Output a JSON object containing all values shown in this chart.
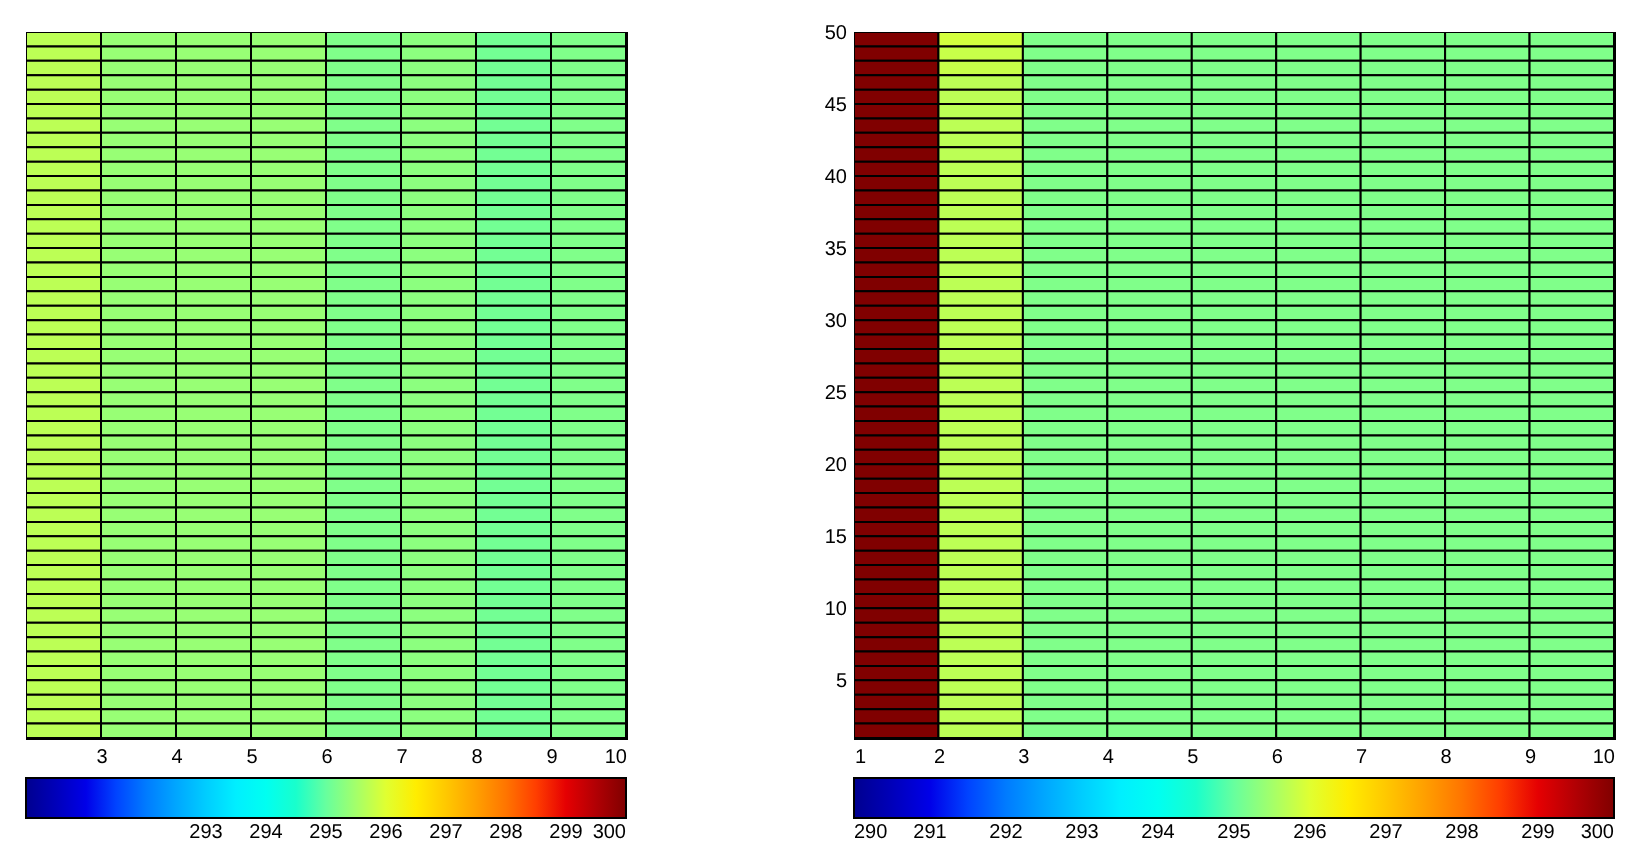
{
  "chart_data": [
    {
      "type": "heatmap",
      "xlim": [
        2,
        10
      ],
      "xticks": [
        3,
        4,
        5,
        6,
        7,
        8,
        9,
        10
      ],
      "ylim": [
        1,
        50
      ],
      "tick_labels": "x",
      "clim": [
        290,
        300
      ],
      "cticks": [
        293,
        294,
        295,
        296,
        297,
        298,
        299,
        300
      ],
      "cells": [
        [
          295.7,
          295.4,
          295.4,
          295.4,
          295.2,
          295.3,
          295.1,
          295.2
        ],
        [
          295.7,
          295.4,
          295.4,
          295.4,
          295.2,
          295.3,
          295.1,
          295.2
        ],
        [
          295.7,
          295.4,
          295.4,
          295.4,
          295.2,
          295.3,
          295.1,
          295.2
        ],
        [
          295.7,
          295.4,
          295.4,
          295.4,
          295.2,
          295.3,
          295.1,
          295.2
        ],
        [
          295.7,
          295.4,
          295.4,
          295.4,
          295.2,
          295.3,
          295.1,
          295.2
        ],
        [
          295.7,
          295.4,
          295.4,
          295.4,
          295.2,
          295.3,
          295.1,
          295.2
        ],
        [
          295.7,
          295.4,
          295.4,
          295.4,
          295.2,
          295.3,
          295.1,
          295.2
        ],
        [
          295.7,
          295.4,
          295.4,
          295.4,
          295.2,
          295.3,
          295.1,
          295.2
        ],
        [
          295.7,
          295.4,
          295.4,
          295.4,
          295.2,
          295.3,
          295.1,
          295.2
        ],
        [
          295.7,
          295.4,
          295.4,
          295.4,
          295.2,
          295.3,
          295.1,
          295.2
        ],
        [
          295.7,
          295.4,
          295.4,
          295.4,
          295.2,
          295.3,
          295.1,
          295.2
        ],
        [
          295.7,
          295.4,
          295.4,
          295.4,
          295.2,
          295.3,
          295.1,
          295.2
        ],
        [
          295.7,
          295.4,
          295.4,
          295.4,
          295.2,
          295.3,
          295.1,
          295.2
        ],
        [
          295.7,
          295.4,
          295.4,
          295.4,
          295.2,
          295.3,
          295.1,
          295.2
        ],
        [
          295.7,
          295.4,
          295.4,
          295.4,
          295.2,
          295.3,
          295.1,
          295.2
        ],
        [
          295.7,
          295.4,
          295.4,
          295.4,
          295.2,
          295.3,
          295.1,
          295.2
        ],
        [
          295.7,
          295.4,
          295.4,
          295.4,
          295.2,
          295.3,
          295.1,
          295.2
        ],
        [
          295.7,
          295.4,
          295.4,
          295.4,
          295.2,
          295.3,
          295.1,
          295.2
        ],
        [
          295.7,
          295.4,
          295.4,
          295.4,
          295.2,
          295.3,
          295.1,
          295.2
        ],
        [
          295.7,
          295.4,
          295.4,
          295.4,
          295.2,
          295.3,
          295.1,
          295.2
        ],
        [
          295.7,
          295.4,
          295.4,
          295.4,
          295.2,
          295.3,
          295.1,
          295.2
        ],
        [
          295.7,
          295.4,
          295.4,
          295.4,
          295.2,
          295.3,
          295.1,
          295.2
        ],
        [
          295.7,
          295.4,
          295.4,
          295.4,
          295.2,
          295.3,
          295.1,
          295.2
        ],
        [
          295.7,
          295.4,
          295.4,
          295.4,
          295.2,
          295.3,
          295.1,
          295.2
        ],
        [
          295.7,
          295.4,
          295.4,
          295.4,
          295.2,
          295.3,
          295.1,
          295.2
        ],
        [
          295.7,
          295.4,
          295.4,
          295.4,
          295.2,
          295.3,
          295.1,
          295.2
        ],
        [
          295.7,
          295.4,
          295.4,
          295.4,
          295.2,
          295.3,
          295.1,
          295.2
        ],
        [
          295.7,
          295.4,
          295.4,
          295.4,
          295.2,
          295.3,
          295.1,
          295.2
        ],
        [
          295.7,
          295.4,
          295.4,
          295.4,
          295.2,
          295.3,
          295.1,
          295.2
        ],
        [
          295.7,
          295.4,
          295.4,
          295.4,
          295.2,
          295.3,
          295.1,
          295.2
        ],
        [
          295.7,
          295.4,
          295.4,
          295.4,
          295.2,
          295.3,
          295.1,
          295.2
        ],
        [
          295.7,
          295.4,
          295.4,
          295.4,
          295.2,
          295.3,
          295.1,
          295.2
        ],
        [
          295.7,
          295.4,
          295.4,
          295.4,
          295.2,
          295.3,
          295.1,
          295.2
        ],
        [
          295.7,
          295.4,
          295.4,
          295.4,
          295.2,
          295.3,
          295.1,
          295.2
        ],
        [
          295.7,
          295.4,
          295.4,
          295.4,
          295.2,
          295.3,
          295.1,
          295.2
        ],
        [
          295.7,
          295.4,
          295.4,
          295.4,
          295.2,
          295.3,
          295.1,
          295.2
        ],
        [
          295.7,
          295.4,
          295.4,
          295.4,
          295.2,
          295.3,
          295.1,
          295.2
        ],
        [
          295.7,
          295.4,
          295.4,
          295.4,
          295.2,
          295.3,
          295.1,
          295.2
        ],
        [
          295.7,
          295.4,
          295.4,
          295.4,
          295.2,
          295.3,
          295.1,
          295.2
        ],
        [
          295.7,
          295.4,
          295.4,
          295.4,
          295.2,
          295.3,
          295.1,
          295.2
        ],
        [
          295.7,
          295.4,
          295.4,
          295.4,
          295.2,
          295.3,
          295.1,
          295.2
        ],
        [
          295.7,
          295.4,
          295.4,
          295.4,
          295.2,
          295.3,
          295.1,
          295.2
        ],
        [
          295.7,
          295.4,
          295.4,
          295.4,
          295.2,
          295.3,
          295.1,
          295.2
        ],
        [
          295.7,
          295.4,
          295.4,
          295.4,
          295.2,
          295.3,
          295.1,
          295.2
        ],
        [
          295.7,
          295.4,
          295.4,
          295.4,
          295.2,
          295.3,
          295.1,
          295.2
        ],
        [
          295.7,
          295.4,
          295.4,
          295.4,
          295.2,
          295.3,
          295.1,
          295.2
        ],
        [
          295.7,
          295.4,
          295.4,
          295.4,
          295.2,
          295.3,
          295.1,
          295.2
        ],
        [
          295.7,
          295.4,
          295.4,
          295.4,
          295.2,
          295.3,
          295.1,
          295.2
        ],
        [
          295.7,
          295.4,
          295.4,
          295.4,
          295.2,
          295.3,
          295.1,
          295.2
        ]
      ]
    },
    {
      "type": "heatmap",
      "xlim": [
        1,
        10
      ],
      "xticks": [
        1,
        2,
        3,
        4,
        5,
        6,
        7,
        8,
        9,
        10
      ],
      "ylim": [
        1,
        50
      ],
      "yticks": [
        5,
        10,
        15,
        20,
        25,
        30,
        35,
        40,
        45,
        50
      ],
      "clim": [
        290,
        300
      ],
      "cticks": [
        290,
        291,
        292,
        293,
        294,
        295,
        296,
        297,
        298,
        299,
        300
      ],
      "cells": [
        [
          300,
          295.9,
          295.2,
          295.2,
          295.2,
          295.2,
          295.2,
          295.2,
          295.2
        ],
        [
          300,
          295.8,
          295.2,
          295.2,
          295.2,
          295.2,
          295.2,
          295.2,
          295.2
        ],
        [
          300,
          295.8,
          295.2,
          295.2,
          295.2,
          295.2,
          295.2,
          295.2,
          295.2
        ],
        [
          300,
          295.7,
          295.2,
          295.2,
          295.2,
          295.2,
          295.2,
          295.2,
          295.2
        ],
        [
          300,
          295.7,
          295.2,
          295.2,
          295.2,
          295.2,
          295.2,
          295.2,
          295.2
        ],
        [
          300,
          295.7,
          295.2,
          295.2,
          295.2,
          295.2,
          295.2,
          295.2,
          295.2
        ],
        [
          300,
          295.7,
          295.2,
          295.2,
          295.2,
          295.2,
          295.2,
          295.2,
          295.2
        ],
        [
          300,
          295.7,
          295.2,
          295.2,
          295.2,
          295.2,
          295.2,
          295.2,
          295.2
        ],
        [
          300,
          295.7,
          295.2,
          295.2,
          295.2,
          295.2,
          295.2,
          295.2,
          295.2
        ],
        [
          300,
          295.7,
          295.2,
          295.2,
          295.2,
          295.2,
          295.2,
          295.2,
          295.2
        ],
        [
          300,
          295.7,
          295.2,
          295.2,
          295.2,
          295.2,
          295.2,
          295.2,
          295.2
        ],
        [
          300,
          295.7,
          295.2,
          295.2,
          295.2,
          295.2,
          295.2,
          295.2,
          295.2
        ],
        [
          300,
          295.7,
          295.2,
          295.2,
          295.2,
          295.2,
          295.2,
          295.2,
          295.2
        ],
        [
          300,
          295.7,
          295.2,
          295.2,
          295.2,
          295.2,
          295.2,
          295.2,
          295.2
        ],
        [
          300,
          295.7,
          295.2,
          295.2,
          295.2,
          295.2,
          295.2,
          295.2,
          295.2
        ],
        [
          300,
          295.7,
          295.2,
          295.2,
          295.2,
          295.2,
          295.2,
          295.2,
          295.2
        ],
        [
          300,
          295.7,
          295.2,
          295.2,
          295.2,
          295.2,
          295.2,
          295.2,
          295.2
        ],
        [
          300,
          295.7,
          295.2,
          295.2,
          295.2,
          295.2,
          295.2,
          295.2,
          295.2
        ],
        [
          300,
          295.7,
          295.2,
          295.2,
          295.2,
          295.2,
          295.2,
          295.2,
          295.2
        ],
        [
          300,
          295.7,
          295.2,
          295.2,
          295.2,
          295.2,
          295.2,
          295.2,
          295.2
        ],
        [
          300,
          295.7,
          295.2,
          295.2,
          295.2,
          295.2,
          295.2,
          295.2,
          295.2
        ],
        [
          300,
          295.7,
          295.2,
          295.2,
          295.2,
          295.2,
          295.2,
          295.2,
          295.2
        ],
        [
          300,
          295.7,
          295.2,
          295.2,
          295.2,
          295.2,
          295.2,
          295.2,
          295.2
        ],
        [
          300,
          295.7,
          295.2,
          295.2,
          295.2,
          295.2,
          295.2,
          295.2,
          295.2
        ],
        [
          300,
          295.7,
          295.2,
          295.2,
          295.2,
          295.2,
          295.2,
          295.2,
          295.2
        ],
        [
          300,
          295.7,
          295.2,
          295.2,
          295.2,
          295.2,
          295.2,
          295.2,
          295.2
        ],
        [
          300,
          295.7,
          295.2,
          295.2,
          295.2,
          295.2,
          295.2,
          295.2,
          295.2
        ],
        [
          300,
          295.7,
          295.2,
          295.2,
          295.2,
          295.2,
          295.2,
          295.2,
          295.2
        ],
        [
          300,
          295.7,
          295.2,
          295.2,
          295.2,
          295.2,
          295.2,
          295.2,
          295.2
        ],
        [
          300,
          295.7,
          295.2,
          295.2,
          295.2,
          295.2,
          295.2,
          295.2,
          295.2
        ],
        [
          300,
          295.7,
          295.2,
          295.2,
          295.2,
          295.2,
          295.2,
          295.2,
          295.2
        ],
        [
          300,
          295.7,
          295.2,
          295.2,
          295.2,
          295.2,
          295.2,
          295.2,
          295.2
        ],
        [
          300,
          295.7,
          295.2,
          295.2,
          295.2,
          295.2,
          295.2,
          295.2,
          295.2
        ],
        [
          300,
          295.7,
          295.2,
          295.2,
          295.2,
          295.2,
          295.2,
          295.2,
          295.2
        ],
        [
          300,
          295.7,
          295.2,
          295.2,
          295.2,
          295.2,
          295.2,
          295.2,
          295.2
        ],
        [
          300,
          295.7,
          295.2,
          295.2,
          295.2,
          295.2,
          295.2,
          295.2,
          295.2
        ],
        [
          300,
          295.7,
          295.2,
          295.2,
          295.2,
          295.2,
          295.2,
          295.2,
          295.2
        ],
        [
          300,
          295.7,
          295.2,
          295.2,
          295.2,
          295.2,
          295.2,
          295.2,
          295.2
        ],
        [
          300,
          295.7,
          295.2,
          295.2,
          295.2,
          295.2,
          295.2,
          295.2,
          295.2
        ],
        [
          300,
          295.7,
          295.2,
          295.2,
          295.2,
          295.2,
          295.2,
          295.2,
          295.2
        ],
        [
          300,
          295.7,
          295.2,
          295.2,
          295.2,
          295.2,
          295.2,
          295.2,
          295.2
        ],
        [
          300,
          295.7,
          295.2,
          295.2,
          295.2,
          295.2,
          295.2,
          295.2,
          295.2
        ],
        [
          300,
          295.7,
          295.2,
          295.2,
          295.2,
          295.2,
          295.2,
          295.2,
          295.2
        ],
        [
          300,
          295.7,
          295.2,
          295.2,
          295.2,
          295.2,
          295.2,
          295.2,
          295.2
        ],
        [
          300,
          295.7,
          295.2,
          295.2,
          295.2,
          295.2,
          295.2,
          295.2,
          295.2
        ],
        [
          300,
          295.7,
          295.2,
          295.2,
          295.2,
          295.2,
          295.2,
          295.2,
          295.2
        ],
        [
          300,
          295.7,
          295.2,
          295.2,
          295.2,
          295.2,
          295.2,
          295.2,
          295.2
        ],
        [
          300,
          295.7,
          295.2,
          295.2,
          295.2,
          295.2,
          295.2,
          295.2,
          295.2
        ],
        [
          300,
          295.7,
          295.2,
          295.2,
          295.2,
          295.2,
          295.2,
          295.2,
          295.2
        ]
      ]
    }
  ]
}
